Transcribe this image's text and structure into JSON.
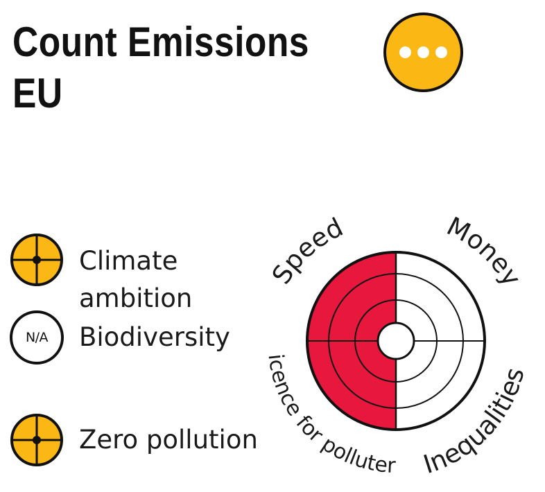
{
  "header": {
    "title_line1": "Count Emissions",
    "title_line2": "EU"
  },
  "more_button": {
    "color": "#fbb713"
  },
  "criteria": [
    {
      "label": "Climate\nambition",
      "badge": "crosshair-icon",
      "color": "#fbb713"
    },
    {
      "label": "Biodiversity",
      "badge": "N/A",
      "color": "#ffffff"
    },
    {
      "label": "Zero pollution",
      "badge": "crosshair-icon",
      "color": "#fbb713"
    }
  ],
  "radar": {
    "segments": [
      {
        "label": "Speed",
        "rating_fraction": 1.0,
        "filled": true
      },
      {
        "label": "Money",
        "rating_fraction": 1.0,
        "filled": false
      },
      {
        "label": "Inequalities",
        "rating_fraction": 1.0,
        "filled": false
      },
      {
        "label": "Licence for polluters",
        "rating_fraction": 1.0,
        "filled": true
      }
    ],
    "fill_color": "#e8173d",
    "line_color": "#111111"
  }
}
